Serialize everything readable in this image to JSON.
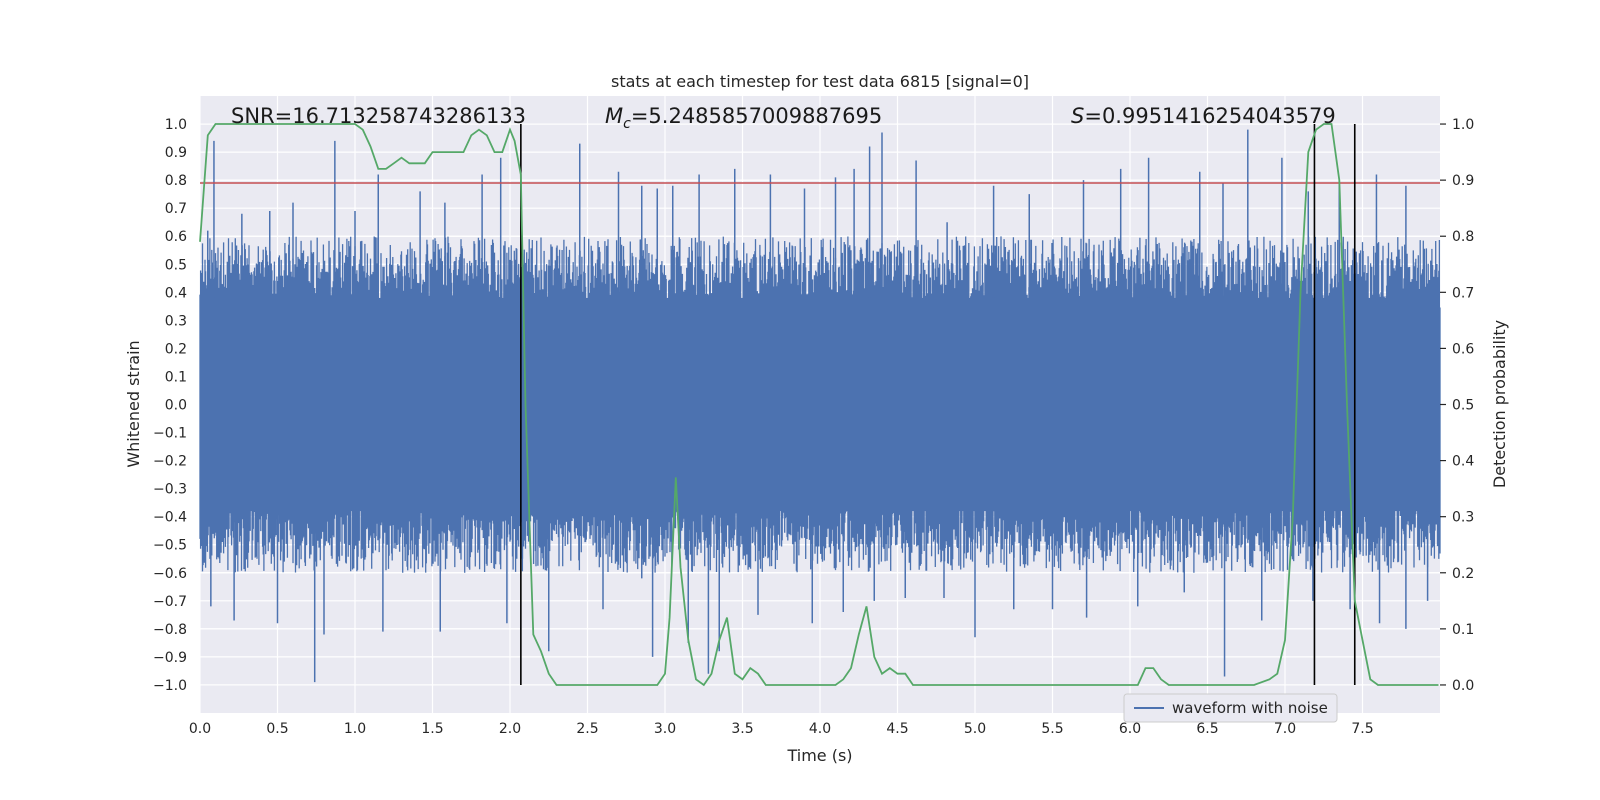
{
  "chart_data": {
    "type": "line",
    "title": "stats at each timestep for test data 6815 [signal=0]",
    "xlabel": "Time (s)",
    "ylabel_left": "Whitened strain",
    "ylabel_right": "Detection probability",
    "xlim": [
      0,
      8
    ],
    "ylim_left": [
      -1.1,
      1.1
    ],
    "ylim_right": [
      -0.05,
      1.05
    ],
    "x_ticks": [
      "0.0",
      "0.5",
      "1.0",
      "1.5",
      "2.0",
      "2.5",
      "3.0",
      "3.5",
      "4.0",
      "4.5",
      "5.0",
      "5.5",
      "6.0",
      "6.5",
      "7.0",
      "7.5"
    ],
    "y_ticks_left": [
      "1.0",
      "0.9",
      "0.8",
      "0.7",
      "0.6",
      "0.5",
      "0.4",
      "0.3",
      "0.2",
      "0.1",
      "0.0",
      "−0.1",
      "−0.2",
      "−0.3",
      "−0.4",
      "−0.5",
      "−0.6",
      "−0.7",
      "−0.8",
      "−0.9",
      "−1.0"
    ],
    "y_ticks_right": [
      "1.0",
      "0.9",
      "0.8",
      "0.7",
      "0.6",
      "0.5",
      "0.4",
      "0.3",
      "0.2",
      "0.1",
      "0.0"
    ],
    "annotations": {
      "snr": "SNR=16.713258743286133",
      "mc_symbol": "M",
      "mc_subscript": "c",
      "mc_value": "=5.2485857009887695",
      "s_symbol": "S",
      "s_value": "=0.9951416254043579"
    },
    "legend": "waveform with noise",
    "legend_location": "lower-right",
    "grid": true,
    "threshold_left": 0.79,
    "vertical_lines_x": [
      2.07,
      7.19,
      7.45
    ],
    "waveform": {
      "name": "waveform with noise",
      "color": "#4c72b0",
      "dense_envelope": [
        -0.38,
        0.38
      ],
      "peaks_positive": [
        [
          0.05,
          0.62
        ],
        [
          0.09,
          0.94
        ],
        [
          0.27,
          0.68
        ],
        [
          0.45,
          0.69
        ],
        [
          0.6,
          0.72
        ],
        [
          0.87,
          0.94
        ],
        [
          1.0,
          0.69
        ],
        [
          1.15,
          0.82
        ],
        [
          1.42,
          0.76
        ],
        [
          1.58,
          0.72
        ],
        [
          1.82,
          0.82
        ],
        [
          1.94,
          0.88
        ],
        [
          2.45,
          0.93
        ],
        [
          2.7,
          0.83
        ],
        [
          2.85,
          0.78
        ],
        [
          2.95,
          0.77
        ],
        [
          3.05,
          0.78
        ],
        [
          3.22,
          0.82
        ],
        [
          3.45,
          0.84
        ],
        [
          3.68,
          0.82
        ],
        [
          3.9,
          0.77
        ],
        [
          4.1,
          0.81
        ],
        [
          4.22,
          0.84
        ],
        [
          4.32,
          0.92
        ],
        [
          4.4,
          0.97
        ],
        [
          4.62,
          0.87
        ],
        [
          4.82,
          0.65
        ],
        [
          5.12,
          0.78
        ],
        [
          5.35,
          0.75
        ],
        [
          5.7,
          0.8
        ],
        [
          5.94,
          0.84
        ],
        [
          6.12,
          0.88
        ],
        [
          6.45,
          0.83
        ],
        [
          6.6,
          0.79
        ],
        [
          6.76,
          0.98
        ],
        [
          6.98,
          0.88
        ],
        [
          7.15,
          0.76
        ],
        [
          7.35,
          0.8
        ],
        [
          7.59,
          0.82
        ],
        [
          7.78,
          0.78
        ]
      ],
      "peaks_negative": [
        [
          0.07,
          -0.72
        ],
        [
          0.22,
          -0.77
        ],
        [
          0.5,
          -0.78
        ],
        [
          0.74,
          -0.99
        ],
        [
          0.8,
          -0.82
        ],
        [
          1.18,
          -0.81
        ],
        [
          1.55,
          -0.81
        ],
        [
          1.98,
          -0.78
        ],
        [
          2.08,
          -0.55
        ],
        [
          2.25,
          -0.88
        ],
        [
          2.6,
          -0.73
        ],
        [
          2.85,
          -0.62
        ],
        [
          2.92,
          -0.9
        ],
        [
          3.15,
          -0.85
        ],
        [
          3.28,
          -0.96
        ],
        [
          3.35,
          -0.88
        ],
        [
          3.6,
          -0.75
        ],
        [
          3.95,
          -0.78
        ],
        [
          4.15,
          -0.74
        ],
        [
          4.35,
          -0.7
        ],
        [
          4.55,
          -0.69
        ],
        [
          4.8,
          -0.69
        ],
        [
          5.0,
          -0.83
        ],
        [
          5.25,
          -0.73
        ],
        [
          5.5,
          -0.73
        ],
        [
          5.72,
          -0.76
        ],
        [
          6.05,
          -0.72
        ],
        [
          6.35,
          -0.67
        ],
        [
          6.61,
          -0.97
        ],
        [
          6.85,
          -0.77
        ],
        [
          7.18,
          -0.7
        ],
        [
          7.42,
          -0.73
        ],
        [
          7.61,
          -0.78
        ],
        [
          7.78,
          -0.8
        ],
        [
          7.92,
          -0.7
        ]
      ]
    },
    "detection_probability": {
      "color": "#55a868",
      "x": [
        0.0,
        0.05,
        0.1,
        0.15,
        0.2,
        0.3,
        0.4,
        0.5,
        0.6,
        0.7,
        0.8,
        0.9,
        1.0,
        1.05,
        1.1,
        1.15,
        1.2,
        1.25,
        1.3,
        1.35,
        1.45,
        1.5,
        1.55,
        1.6,
        1.65,
        1.7,
        1.75,
        1.8,
        1.85,
        1.9,
        1.95,
        2.0,
        2.03,
        2.07,
        2.1,
        2.15,
        2.2,
        2.25,
        2.3,
        2.35,
        2.4,
        2.5,
        2.6,
        2.7,
        2.75,
        2.8,
        2.85,
        2.9,
        2.95,
        3.0,
        3.03,
        3.07,
        3.1,
        3.15,
        3.2,
        3.25,
        3.3,
        3.35,
        3.4,
        3.45,
        3.5,
        3.55,
        3.6,
        3.65,
        3.7,
        3.75,
        3.8,
        3.9,
        4.0,
        4.1,
        4.15,
        4.2,
        4.25,
        4.3,
        4.35,
        4.4,
        4.45,
        4.5,
        4.55,
        4.6,
        4.65,
        4.7,
        4.8,
        4.9,
        5.0,
        5.1,
        5.2,
        5.3,
        5.4,
        5.5,
        5.6,
        5.7,
        5.8,
        5.9,
        6.0,
        6.05,
        6.1,
        6.15,
        6.2,
        6.25,
        6.3,
        6.4,
        6.5,
        6.6,
        6.7,
        6.8,
        6.9,
        6.95,
        7.0,
        7.05,
        7.1,
        7.15,
        7.2,
        7.25,
        7.3,
        7.35,
        7.4,
        7.45,
        7.5,
        7.55,
        7.6,
        7.65,
        7.7,
        7.75,
        7.8,
        7.9,
        7.99
      ],
      "y": [
        0.79,
        0.98,
        1.0,
        1.0,
        1.0,
        1.0,
        1.0,
        1.0,
        1.0,
        1.0,
        1.0,
        1.0,
        1.0,
        0.99,
        0.96,
        0.92,
        0.92,
        0.93,
        0.94,
        0.93,
        0.93,
        0.95,
        0.95,
        0.95,
        0.95,
        0.95,
        0.98,
        0.99,
        0.98,
        0.95,
        0.95,
        0.99,
        0.97,
        0.91,
        0.5,
        0.09,
        0.06,
        0.02,
        0.0,
        0.0,
        0.0,
        0.0,
        0.0,
        0.0,
        0.0,
        0.0,
        0.0,
        0.0,
        0.0,
        0.02,
        0.12,
        0.37,
        0.21,
        0.08,
        0.01,
        0.0,
        0.02,
        0.08,
        0.12,
        0.02,
        0.01,
        0.03,
        0.02,
        0.0,
        0.0,
        0.0,
        0.0,
        0.0,
        0.0,
        0.0,
        0.01,
        0.03,
        0.09,
        0.14,
        0.05,
        0.02,
        0.03,
        0.02,
        0.02,
        0.0,
        0.0,
        0.0,
        0.0,
        0.0,
        0.0,
        0.0,
        0.0,
        0.0,
        0.0,
        0.0,
        0.0,
        0.0,
        0.0,
        0.0,
        0.0,
        0.0,
        0.03,
        0.03,
        0.01,
        0.0,
        0.0,
        0.0,
        0.0,
        0.0,
        0.0,
        0.0,
        0.01,
        0.02,
        0.08,
        0.3,
        0.7,
        0.95,
        0.99,
        1.0,
        1.0,
        0.9,
        0.5,
        0.15,
        0.08,
        0.01,
        0.0,
        0.0,
        0.0,
        0.0,
        0.0,
        0.0,
        0.0
      ]
    },
    "threshold_color": "#c44e52",
    "vline_color": "#000000"
  }
}
